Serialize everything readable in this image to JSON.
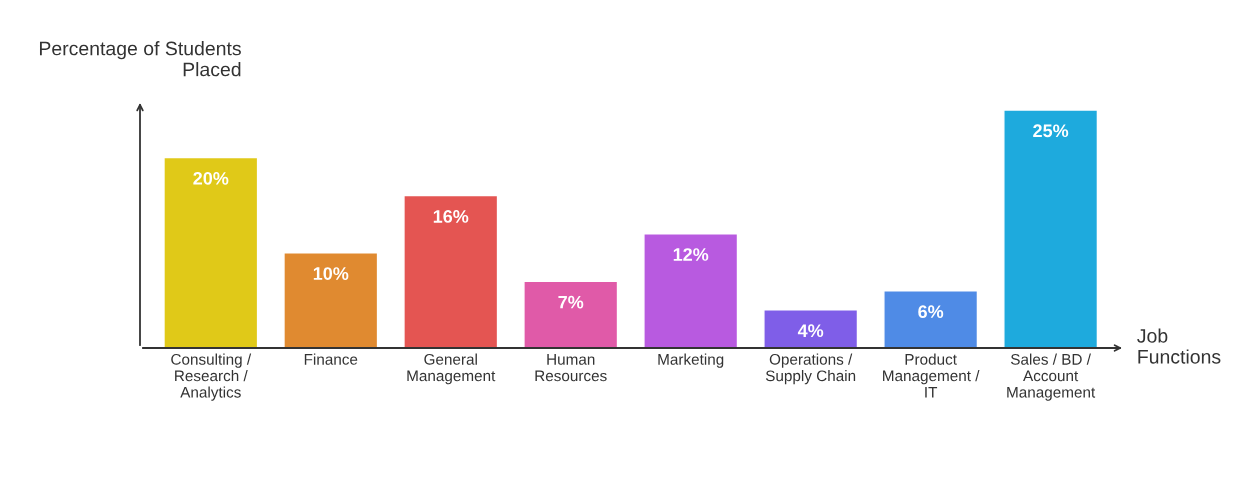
{
  "chart_data": {
    "type": "bar",
    "ylabel": "Percentage of Students\nPlaced",
    "xlabel": "Job\nFunctions",
    "categories": [
      "Consulting /\nResearch /\nAnalytics",
      "Finance",
      "General\nManagement",
      "Human\nResources",
      "Marketing",
      "Operations /\nSupply Chain",
      "Product\nManagement /\nIT",
      "Sales / BD /\nAccount\nManagement"
    ],
    "values": [
      20,
      10,
      16,
      7,
      12,
      4,
      6,
      25
    ],
    "value_labels": [
      "20%",
      "10%",
      "16%",
      "7%",
      "12%",
      "4%",
      "6%",
      "25%"
    ],
    "colors": [
      "#e0c918",
      "#e08a30",
      "#e45552",
      "#e05aa8",
      "#b85ae0",
      "#7f5ee8",
      "#4f8be6",
      "#1eaadd"
    ],
    "grid": false,
    "legend": false
  }
}
